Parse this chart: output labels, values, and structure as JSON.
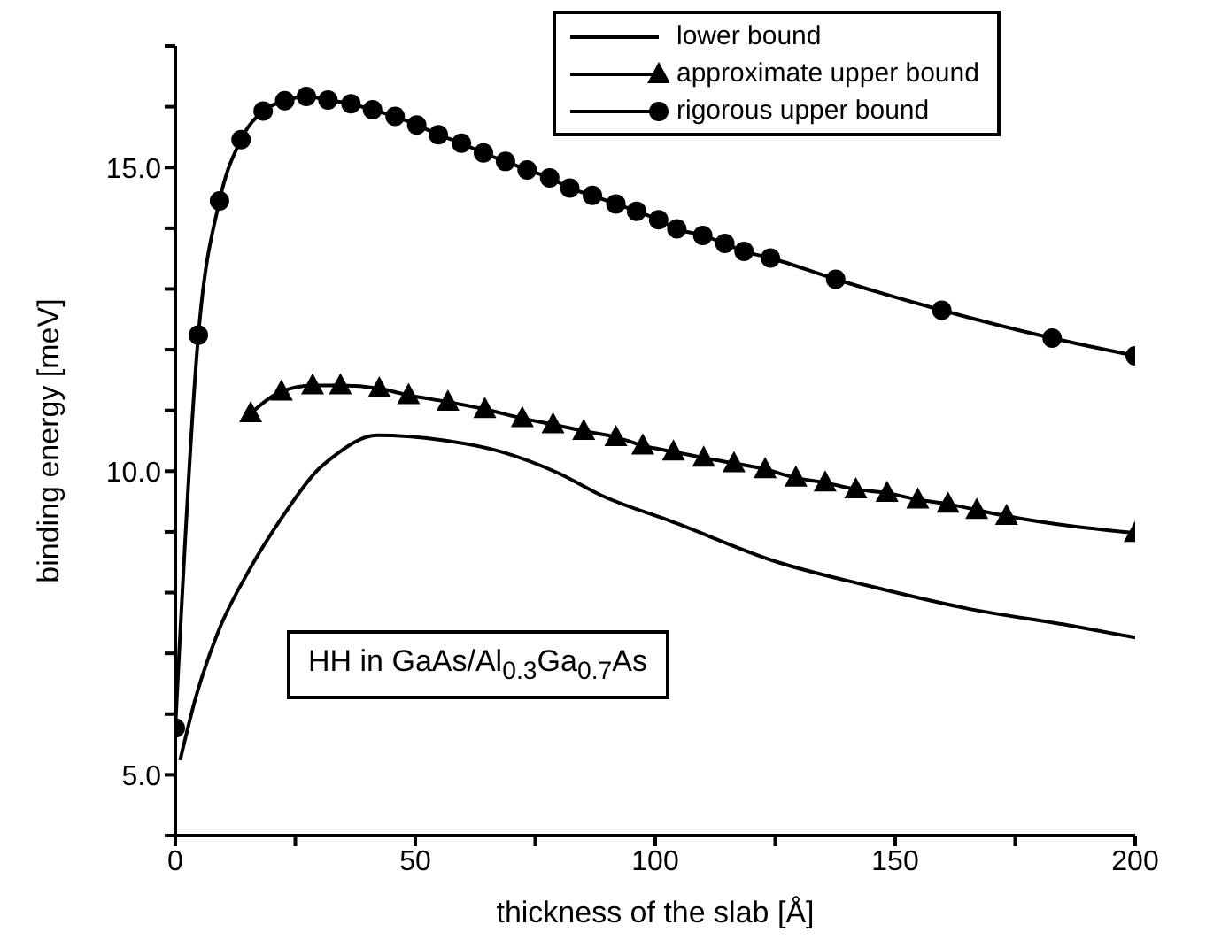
{
  "chart_data": {
    "type": "line",
    "xlabel": "thickness of the slab [Å]",
    "ylabel": "binding energy [meV]",
    "xlim": [
      0,
      200
    ],
    "ylim": [
      4,
      17
    ],
    "xticks": [
      0,
      {
        "value": 25,
        "label": null
      },
      50,
      {
        "value": 75,
        "label": null
      },
      100,
      {
        "value": 125,
        "label": null
      },
      150,
      {
        "value": 175,
        "label": null
      },
      200
    ],
    "yticks": [
      {
        "value": 4,
        "label": null
      },
      {
        "value": 5,
        "label": "5.0"
      },
      {
        "value": 6,
        "label": null
      },
      {
        "value": 7,
        "label": null
      },
      {
        "value": 8,
        "label": null
      },
      {
        "value": 9,
        "label": null
      },
      {
        "value": 10,
        "label": "10.0"
      },
      {
        "value": 11,
        "label": null
      },
      {
        "value": 12,
        "label": null
      },
      {
        "value": 13,
        "label": null
      },
      {
        "value": 14,
        "label": null
      },
      {
        "value": 15,
        "label": "15.0"
      },
      {
        "value": 16,
        "label": null
      },
      {
        "value": 17,
        "label": null
      }
    ],
    "legend": "top right",
    "grid": false,
    "annotations": [
      "HH in GaAs/Al$_{0.3}$Ga$_{0.7}$As"
    ],
    "series": [
      {
        "name": "lower bound",
        "color": "#000000",
        "marker": "none",
        "x": [
          1,
          4,
          9,
          15.1,
          22.5,
          29.8,
          32.3,
          42.1,
          55.6,
          67.9,
          80,
          88.8,
          103.5,
          125.6,
          144,
          164.9,
          187,
          200
        ],
        "values": [
          5.24,
          6.2,
          7.37,
          8.33,
          9.27,
          10.03,
          10.2,
          10.59,
          10.51,
          10.32,
          9.96,
          9.6,
          9.17,
          8.5,
          8.12,
          7.74,
          7.45,
          7.26
        ]
      },
      {
        "name": "approximate upper bound",
        "color": "#000000",
        "marker": "triangle",
        "x": [
          15.7,
          22.1,
          28.6,
          34.4,
          42.5,
          48.6,
          56.8,
          64.5,
          72.3,
          78.7,
          85.1,
          91.8,
          97.4,
          103.8,
          110.1,
          116.4,
          122.9,
          129.3,
          135.4,
          141.8,
          148.3,
          154.7,
          161,
          167,
          173.2,
          200
        ],
        "values": [
          10.95,
          11.31,
          11.41,
          11.41,
          11.36,
          11.25,
          11.14,
          11.02,
          10.87,
          10.77,
          10.66,
          10.56,
          10.42,
          10.32,
          10.22,
          10.13,
          10.03,
          9.89,
          9.81,
          9.7,
          9.64,
          9.53,
          9.46,
          9.36,
          9.26,
          8.98
        ]
      },
      {
        "name": "rigorous upper bound",
        "color": "#000000",
        "marker": "circle",
        "x": [
          0,
          4.8,
          9.2,
          13.7,
          18.3,
          22.8,
          27.3,
          31.8,
          36.6,
          41.1,
          45.8,
          50.3,
          54.8,
          59.6,
          64.2,
          68.8,
          73.3,
          78,
          82.2,
          86.9,
          91.8,
          96.1,
          100.7,
          104.5,
          109.9,
          114.5,
          118.5,
          124,
          137.6,
          159.7,
          182.7,
          200
        ],
        "values": [
          5.77,
          12.24,
          14.45,
          15.46,
          15.93,
          16.1,
          16.17,
          16.11,
          16.05,
          15.95,
          15.84,
          15.7,
          15.54,
          15.4,
          15.24,
          15.1,
          14.96,
          14.83,
          14.66,
          14.54,
          14.4,
          14.28,
          14.14,
          13.99,
          13.88,
          13.75,
          13.62,
          13.51,
          13.16,
          12.65,
          12.19,
          11.9
        ]
      }
    ]
  }
}
